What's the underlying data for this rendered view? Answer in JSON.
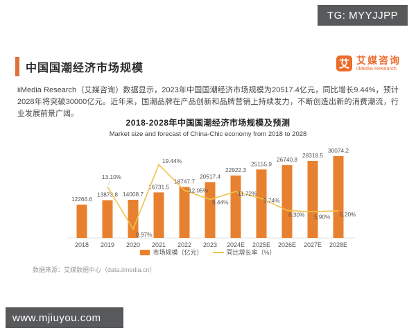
{
  "overlays": {
    "top_badge": "TG: MYYJJPP",
    "bottom_badge": "www.mjiuyou.com"
  },
  "header": {
    "title": "中国国潮经济市场规模",
    "logo": {
      "icon_char": "艾",
      "name_cn": "艾媒咨询",
      "name_en": "iiMedia Research"
    }
  },
  "summary": "iiMedia Research（艾媒咨询）数据显示，2023年中国国潮经济市场规模为20517.4亿元，同比增长9.44%，预计2028年将突破30000亿元。近年来，国潮品牌在产品创新和品牌营销上持续发力，不断创造出新的消费潮流，行业发展前景广阔。",
  "source": "数据来源：艾媒数据中心（data.iimedia.cn）",
  "chart_data": {
    "type": "bar",
    "title": "2018-2028年中国国潮经济市场规模及预测",
    "subtitle": "Market size and forecast of China-Chic economy from 2018 to 2028",
    "categories": [
      "2018",
      "2019",
      "2020",
      "2021",
      "2022",
      "2023",
      "2024E",
      "2025E",
      "2026E",
      "2027E",
      "2028E"
    ],
    "series": [
      {
        "name": "市场规模（亿元）",
        "type": "bar",
        "values": [
          12266.6,
          13873.8,
          14008.7,
          16731.5,
          18747.7,
          20517.4,
          22922.3,
          25155.9,
          26740.8,
          28318.5,
          30074.2
        ]
      },
      {
        "name": "同比增长率（%）",
        "type": "line",
        "values": [
          null,
          13.1,
          0.97,
          19.44,
          12.05,
          9.44,
          11.72,
          9.74,
          6.3,
          5.9,
          6.2
        ],
        "labels": [
          null,
          "13.10%",
          "0.97%",
          "19.44%",
          "12.05%",
          "9.44%",
          "11.72%",
          "9.74%",
          "6.30%",
          "5.90%",
          "6.20%"
        ]
      }
    ],
    "colors": {
      "bar": "#e8812f",
      "line": "#f0c24b"
    },
    "legend_position": "bottom",
    "grid": false,
    "ylim_bar": [
      0,
      30074.2
    ],
    "ylim_line_pct": [
      0,
      20
    ]
  }
}
